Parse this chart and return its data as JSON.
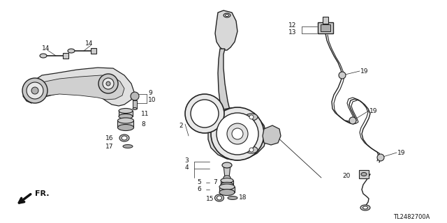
{
  "bg_color": "#ffffff",
  "part_number": "TL2482700A",
  "fr_label": "FR.",
  "line_color": "#222222",
  "gray": "#999999",
  "dark": "#111111",
  "light_gray": "#cccccc",
  "mid_gray": "#aaaaaa"
}
